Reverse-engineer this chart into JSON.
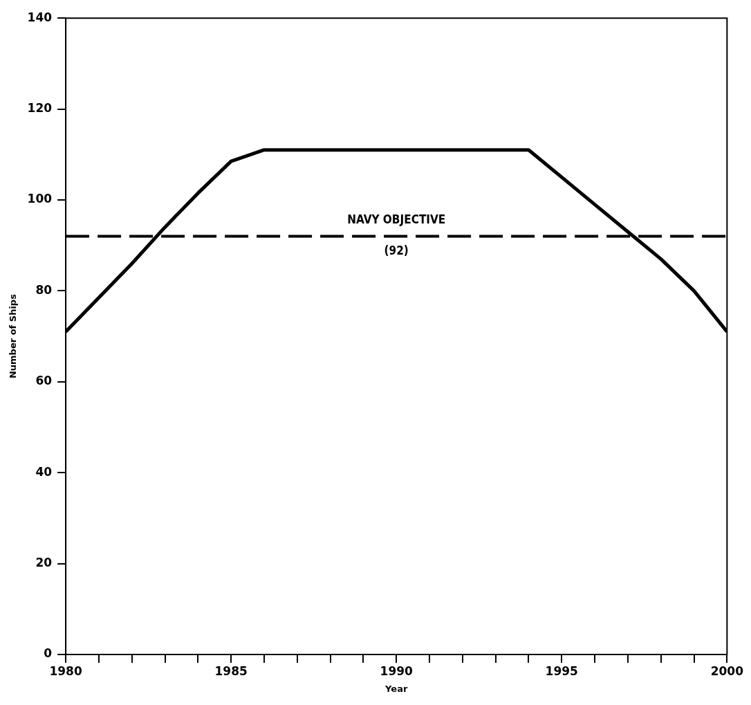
{
  "chart_data": {
    "type": "line",
    "xlabel": "Year",
    "ylabel": "Number of Ships",
    "x": [
      1980,
      1981,
      1982,
      1983,
      1984,
      1985,
      1986,
      1987,
      1988,
      1989,
      1990,
      1991,
      1992,
      1993,
      1994,
      1995,
      1996,
      1997,
      1998,
      1999,
      2000
    ],
    "series": [
      {
        "color": "#000000",
        "values": [
          71,
          78.5,
          86,
          94,
          101.5,
          108.5,
          111,
          111,
          111,
          111,
          111,
          111,
          111,
          111,
          111,
          105,
          99,
          93,
          87,
          80,
          71
        ]
      }
    ],
    "xlim": [
      1980,
      2000
    ],
    "xticks": [
      1980,
      {
        "value": 1981,
        "label": null
      },
      {
        "value": 1982,
        "label": null
      },
      {
        "value": 1983,
        "label": null
      },
      {
        "value": 1984,
        "label": null
      },
      1985,
      {
        "value": 1986,
        "label": null
      },
      {
        "value": 1987,
        "label": null
      },
      {
        "value": 1988,
        "label": null
      },
      {
        "value": 1989,
        "label": null
      },
      1990,
      {
        "value": 1991,
        "label": null
      },
      {
        "value": 1992,
        "label": null
      },
      {
        "value": 1993,
        "label": null
      },
      {
        "value": 1994,
        "label": null
      },
      1995,
      {
        "value": 1996,
        "label": null
      },
      {
        "value": 1997,
        "label": null
      },
      {
        "value": 1998,
        "label": null
      },
      {
        "value": 1999,
        "label": null
      },
      2000
    ],
    "ylim": [
      0,
      140
    ],
    "yticks": [
      0,
      20,
      40,
      60,
      80,
      100,
      120,
      140
    ],
    "ref_lines": [
      {
        "axis": "y",
        "value": 92,
        "label": "NAVY OBJECTIVE",
        "color": "#000000",
        "line_style": "dashed"
      }
    ],
    "annotations": [
      {
        "text": "(92)",
        "x": 1990,
        "y": 92
      }
    ],
    "grid": false,
    "legend": false,
    "marker": "none",
    "line_style": "solid"
  }
}
